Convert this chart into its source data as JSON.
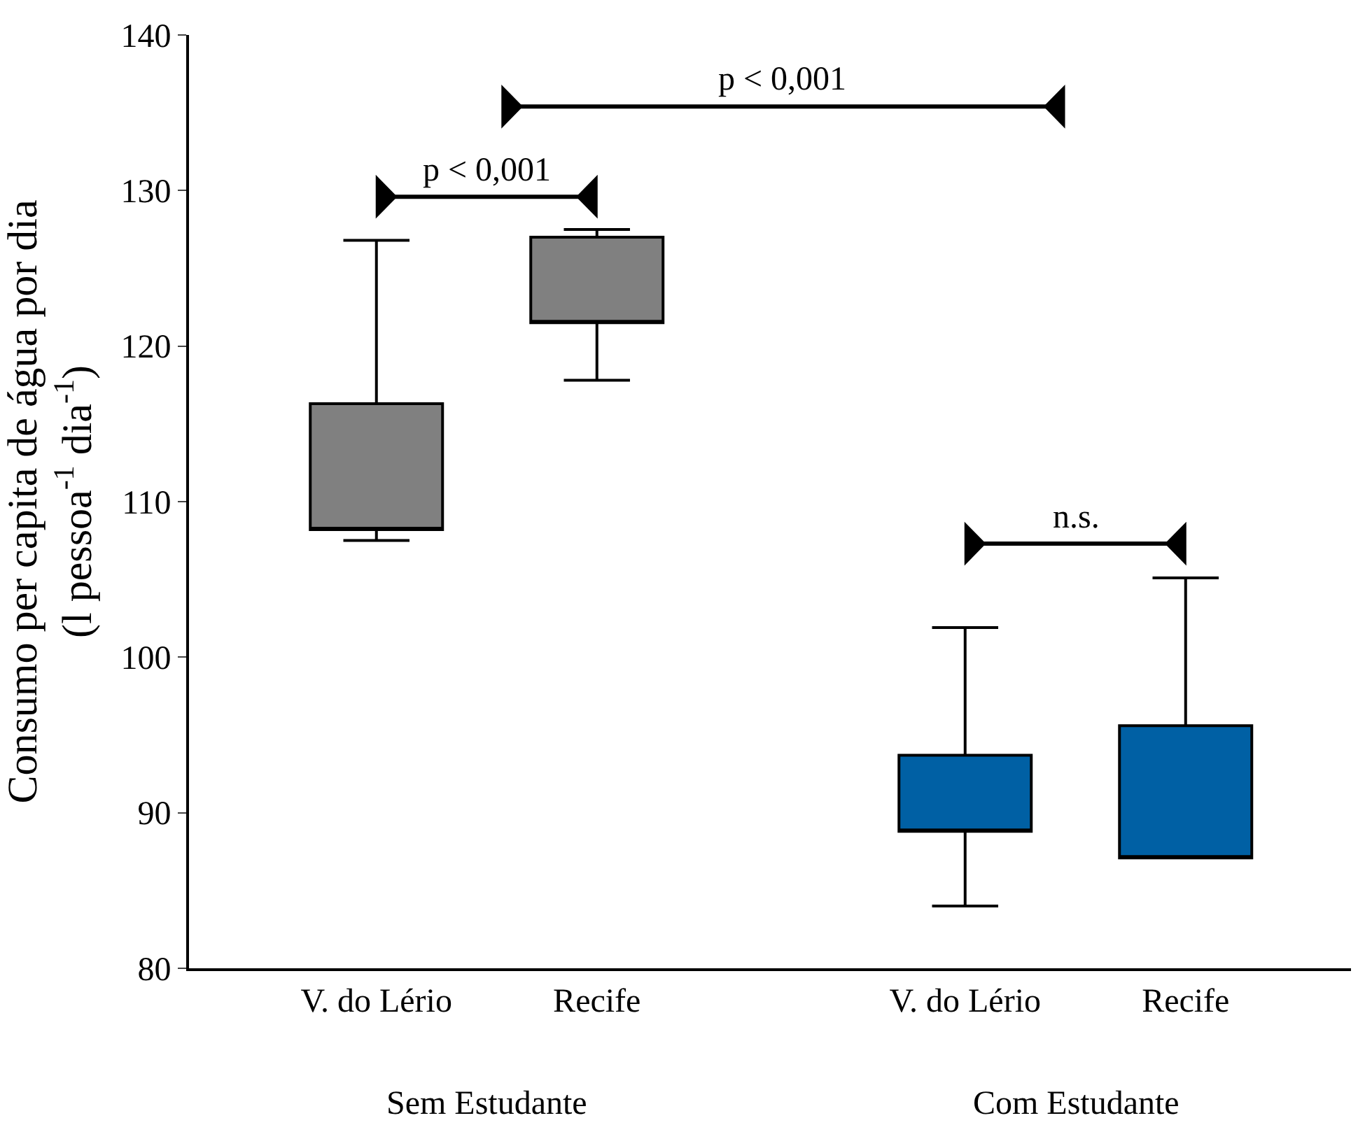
{
  "chart_data": {
    "type": "box",
    "ylabel": "Consumo per capita de água por dia\n(l pessoa$^{-1}$ dia$^{-1}$)",
    "categories": [
      "V. do Lério",
      "Recife",
      "V. do Lério",
      "Recife"
    ],
    "series": [
      {
        "color": "#808080",
        "boxes": [
          {
            "low": 107.5,
            "q1": 108.2,
            "q3": 116.3,
            "high": 126.8
          },
          {
            "low": 117.8,
            "q1": 121.5,
            "q3": 127.0,
            "high": 127.5
          },
          null,
          null
        ]
      },
      {
        "color": "#0060a4",
        "boxes": [
          null,
          null,
          {
            "low": 84.0,
            "q1": 88.8,
            "q3": 93.7,
            "high": 101.9
          },
          {
            "low": 87.1,
            "q1": 87.1,
            "q3": 95.6,
            "high": 105.1
          }
        ]
      }
    ],
    "annotations": [
      "p < 0,001",
      "p < 0,001",
      "n.s.",
      "Sem Estudante",
      "Com Estudante"
    ],
    "ylim": [
      80,
      140
    ],
    "yticks": [
      80,
      90,
      100,
      110,
      120,
      130,
      140
    ]
  }
}
